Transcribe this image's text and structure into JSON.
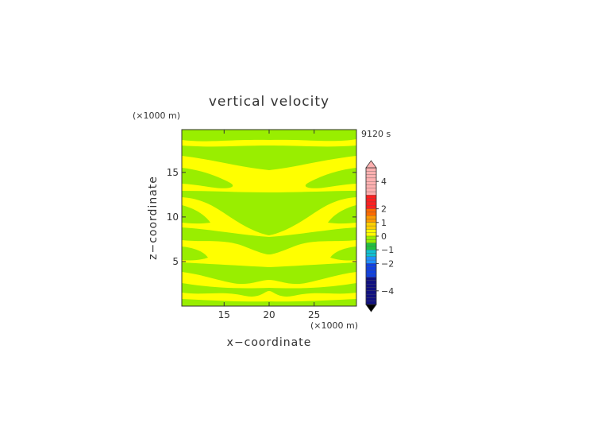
{
  "chart_data": {
    "type": "heatmap",
    "title": "vertical velocity",
    "time_label": "9120 s",
    "xlabel": "x−coordinate",
    "ylabel": "z−coordinate",
    "x_unit": "(×1000 m)",
    "y_unit": "(×1000 m)",
    "xlim": [
      10.3,
      29.7
    ],
    "ylim": [
      0,
      19.8
    ],
    "xticks": [
      15,
      20,
      25
    ],
    "yticks": [
      5,
      10,
      15
    ],
    "colorbar": {
      "tick_values": [
        4,
        2,
        1,
        0,
        -1,
        -2,
        -4
      ],
      "tick_labels": [
        "4",
        "2",
        "1",
        "0",
        "−1",
        "−2",
        "−4"
      ],
      "extend": "both"
    },
    "fields": {
      "background": {
        "level": "slightly positive",
        "color": "#ffff00"
      },
      "bands": {
        "level": "slightly negative",
        "color": "#99ee00"
      }
    }
  }
}
